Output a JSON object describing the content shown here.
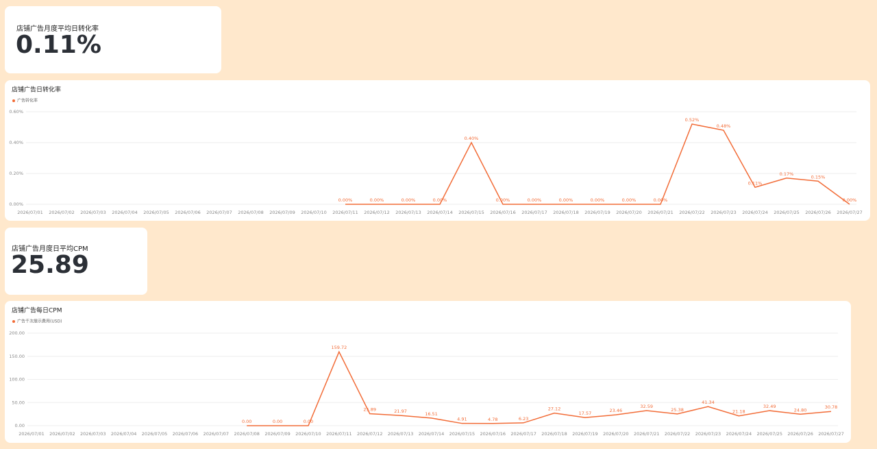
{
  "kpis": [
    {
      "label": "店铺广告月度平均日转化率",
      "value": "0.11%"
    },
    {
      "label": "店铺广告月度日平均CPM",
      "value": "25.89"
    }
  ],
  "chart_data": [
    {
      "type": "line",
      "title": "店铺广告日转化率",
      "categories": [
        "2026/07/01",
        "2026/07/02",
        "2026/07/03",
        "2026/07/04",
        "2026/07/05",
        "2026/07/06",
        "2026/07/07",
        "2026/07/08",
        "2026/07/09",
        "2026/07/10",
        "2026/07/11",
        "2026/07/12",
        "2026/07/13",
        "2026/07/14",
        "2026/07/15",
        "2026/07/16",
        "2026/07/17",
        "2026/07/18",
        "2026/07/19",
        "2026/07/20",
        "2026/07/21",
        "2026/07/22",
        "2026/07/23",
        "2026/07/24",
        "2026/07/25",
        "2026/07/26",
        "2026/07/27"
      ],
      "series": [
        {
          "name": "广告转化率",
          "color": "#f26b36",
          "values": [
            null,
            null,
            null,
            null,
            null,
            null,
            null,
            null,
            null,
            null,
            0,
            0,
            0,
            0,
            0.4,
            0,
            0,
            0,
            0,
            0,
            0,
            0.52,
            0.48,
            0.11,
            0.17,
            0.15,
            0
          ],
          "value_labels": [
            null,
            null,
            null,
            null,
            null,
            null,
            null,
            null,
            null,
            null,
            "0.00%",
            "0.00%",
            "0.00%",
            "0.00%",
            "0.40%",
            "0.00%",
            "0.00%",
            "0.00%",
            "0.00%",
            "0.00%",
            "0.00%",
            "0.52%",
            "0.48%",
            "0.11%",
            "0.17%",
            "0.15%",
            "0.00%"
          ]
        }
      ],
      "ylim": [
        0,
        0.6
      ],
      "yticks": [
        {
          "value": 0,
          "label": "0.00%"
        },
        {
          "value": 0.2,
          "label": "0.20%"
        },
        {
          "value": 0.4,
          "label": "0.40%"
        },
        {
          "value": 0.6,
          "label": "0.60%"
        }
      ],
      "grid": true
    },
    {
      "type": "line",
      "title": "店铺广告每日CPM",
      "categories": [
        "2026/07/01",
        "2026/07/02",
        "2026/07/03",
        "2026/07/04",
        "2026/07/05",
        "2026/07/06",
        "2026/07/07",
        "2026/07/08",
        "2026/07/09",
        "2026/07/10",
        "2026/07/11",
        "2026/07/12",
        "2026/07/13",
        "2026/07/14",
        "2026/07/15",
        "2026/07/16",
        "2026/07/17",
        "2026/07/18",
        "2026/07/19",
        "2026/07/20",
        "2026/07/21",
        "2026/07/22",
        "2026/07/23",
        "2026/07/24",
        "2026/07/25",
        "2026/07/26",
        "2026/07/27"
      ],
      "series": [
        {
          "name": "广告千次展示费用(USD)",
          "color": "#f26b36",
          "values": [
            null,
            null,
            null,
            null,
            null,
            null,
            null,
            0,
            0,
            0,
            159.72,
            25.89,
            21.97,
            16.51,
            4.91,
            4.78,
            6.23,
            27.12,
            17.57,
            23.46,
            32.59,
            25.38,
            41.34,
            21.18,
            32.49,
            24.8,
            30.78
          ],
          "value_labels": [
            null,
            null,
            null,
            null,
            null,
            null,
            null,
            "0.00",
            "0.00",
            "0.00",
            "159.72",
            "25.89",
            "21.97",
            "16.51",
            "4.91",
            "4.78",
            "6.23",
            "27.12",
            "17.57",
            "23.46",
            "32.59",
            "25.38",
            "41.34",
            "21.18",
            "32.49",
            "24.80",
            "30.78"
          ]
        }
      ],
      "ylim": [
        0,
        200
      ],
      "yticks": [
        {
          "value": 0,
          "label": "0.00"
        },
        {
          "value": 50,
          "label": "50.00"
        },
        {
          "value": 100,
          "label": "100.00"
        },
        {
          "value": 150,
          "label": "150.00"
        },
        {
          "value": 200,
          "label": "200.00"
        }
      ],
      "grid": true
    }
  ]
}
